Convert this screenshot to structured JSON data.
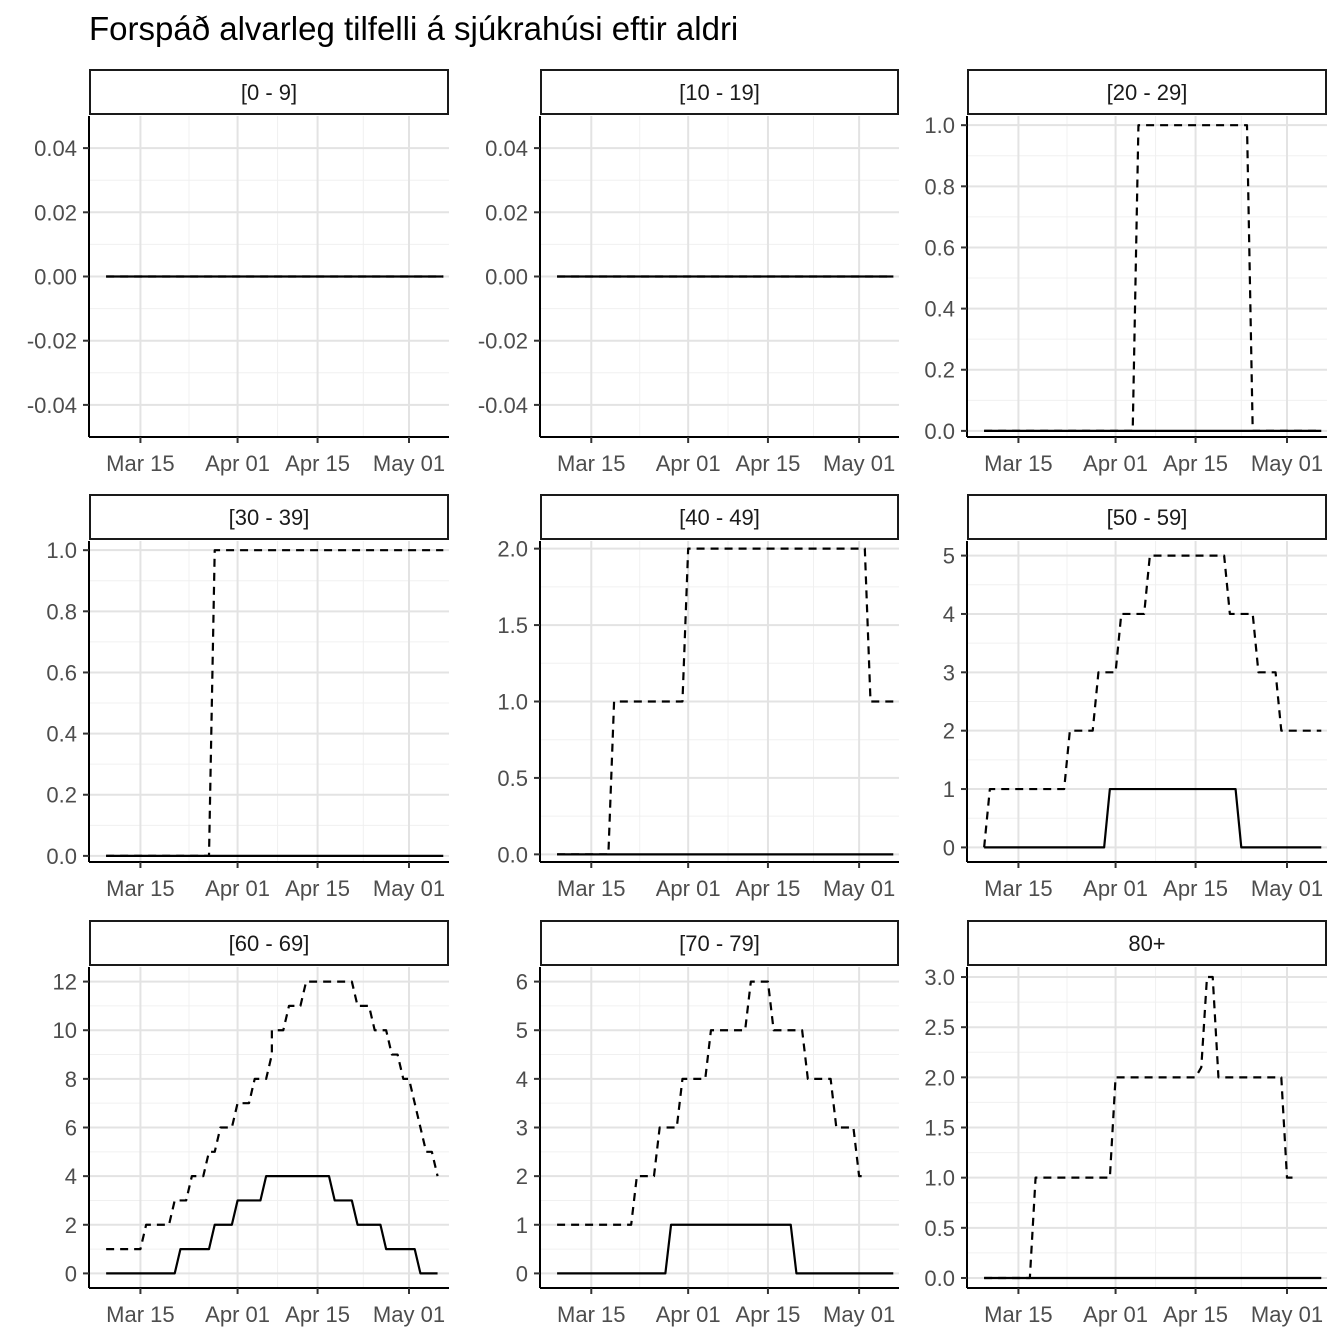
{
  "title": "Forspáð alvarleg tilfelli á sjúkrahúsi eftir aldri",
  "chart_data": {
    "type": "line",
    "title": "Forspáð alvarleg tilfelli á sjúkrahúsi eftir aldri",
    "xlabel": "",
    "ylabel": "",
    "grid": true,
    "x_range": [
      "2020-03-06",
      "2020-05-08"
    ],
    "x_ticks": [
      {
        "date": "2020-03-15",
        "label": "Mar 15"
      },
      {
        "date": "2020-04-01",
        "label": "Apr 01"
      },
      {
        "date": "2020-04-15",
        "label": "Apr 15"
      },
      {
        "date": "2020-05-01",
        "label": "May 01"
      }
    ],
    "line_styles": {
      "upper": "dashed",
      "median": "solid"
    },
    "panels": [
      {
        "label": "[0 - 9]",
        "ylim": [
          -0.05,
          0.05
        ],
        "y_ticks": [
          -0.04,
          -0.02,
          0.0,
          0.02,
          0.04
        ],
        "y_tick_labels": [
          "-0.04",
          "-0.02",
          "0.00",
          "0.02",
          "0.04"
        ],
        "series": [
          {
            "style": "dashed",
            "points": [
              [
                "2020-03-09",
                0
              ],
              [
                "2020-05-07",
                0
              ]
            ]
          },
          {
            "style": "solid",
            "points": [
              [
                "2020-03-09",
                0
              ],
              [
                "2020-05-07",
                0
              ]
            ]
          }
        ]
      },
      {
        "label": "[10 - 19]",
        "ylim": [
          -0.05,
          0.05
        ],
        "y_ticks": [
          -0.04,
          -0.02,
          0.0,
          0.02,
          0.04
        ],
        "y_tick_labels": [
          "-0.04",
          "-0.02",
          "0.00",
          "0.02",
          "0.04"
        ],
        "series": [
          {
            "style": "dashed",
            "points": [
              [
                "2020-03-09",
                0
              ],
              [
                "2020-05-07",
                0
              ]
            ]
          },
          {
            "style": "solid",
            "points": [
              [
                "2020-03-09",
                0
              ],
              [
                "2020-05-07",
                0
              ]
            ]
          }
        ]
      },
      {
        "label": "[20 - 29]",
        "ylim": [
          -0.02,
          1.03
        ],
        "y_ticks": [
          0,
          0.2,
          0.4,
          0.6,
          0.8,
          1.0
        ],
        "y_tick_labels": [
          "0.0",
          "0.2",
          "0.4",
          "0.6",
          "0.8",
          "1.0"
        ],
        "series": [
          {
            "style": "dashed",
            "points": [
              [
                "2020-03-09",
                0
              ],
              [
                "2020-04-04",
                0
              ],
              [
                "2020-04-05",
                1
              ],
              [
                "2020-04-24",
                1
              ],
              [
                "2020-04-25",
                0
              ],
              [
                "2020-05-07",
                0
              ]
            ]
          },
          {
            "style": "solid",
            "points": [
              [
                "2020-03-09",
                0
              ],
              [
                "2020-05-07",
                0
              ]
            ]
          }
        ]
      },
      {
        "label": "[30 - 39]",
        "ylim": [
          -0.02,
          1.03
        ],
        "y_ticks": [
          0,
          0.2,
          0.4,
          0.6,
          0.8,
          1.0
        ],
        "y_tick_labels": [
          "0.0",
          "0.2",
          "0.4",
          "0.6",
          "0.8",
          "1.0"
        ],
        "series": [
          {
            "style": "dashed",
            "points": [
              [
                "2020-03-09",
                0
              ],
              [
                "2020-03-27",
                0
              ],
              [
                "2020-03-28",
                1
              ],
              [
                "2020-05-07",
                1
              ]
            ]
          },
          {
            "style": "solid",
            "points": [
              [
                "2020-03-09",
                0
              ],
              [
                "2020-05-07",
                0
              ]
            ]
          }
        ]
      },
      {
        "label": "[40 - 49]",
        "ylim": [
          -0.05,
          2.05
        ],
        "y_ticks": [
          0,
          0.5,
          1.0,
          1.5,
          2.0
        ],
        "y_tick_labels": [
          "0.0",
          "0.5",
          "1.0",
          "1.5",
          "2.0"
        ],
        "series": [
          {
            "style": "dashed",
            "points": [
              [
                "2020-03-09",
                0
              ],
              [
                "2020-03-18",
                0
              ],
              [
                "2020-03-19",
                1
              ],
              [
                "2020-03-31",
                1
              ],
              [
                "2020-04-01",
                2
              ],
              [
                "2020-05-02",
                2
              ],
              [
                "2020-05-03",
                1
              ],
              [
                "2020-05-07",
                1
              ]
            ]
          },
          {
            "style": "solid",
            "points": [
              [
                "2020-03-09",
                0
              ],
              [
                "2020-05-07",
                0
              ]
            ]
          }
        ]
      },
      {
        "label": "[50 - 59]",
        "ylim": [
          -0.25,
          5.25
        ],
        "y_ticks": [
          0,
          1,
          2,
          3,
          4,
          5
        ],
        "y_tick_labels": [
          "0",
          "1",
          "2",
          "3",
          "4",
          "5"
        ],
        "series": [
          {
            "style": "dashed",
            "points": [
              [
                "2020-03-09",
                0
              ],
              [
                "2020-03-10",
                1
              ],
              [
                "2020-03-23",
                1
              ],
              [
                "2020-03-24",
                2
              ],
              [
                "2020-03-28",
                2
              ],
              [
                "2020-03-29",
                3
              ],
              [
                "2020-04-01",
                3
              ],
              [
                "2020-04-02",
                4
              ],
              [
                "2020-04-06",
                4
              ],
              [
                "2020-04-07",
                5
              ],
              [
                "2020-04-20",
                5
              ],
              [
                "2020-04-21",
                4
              ],
              [
                "2020-04-25",
                4
              ],
              [
                "2020-04-26",
                3
              ],
              [
                "2020-04-29",
                3
              ],
              [
                "2020-04-30",
                2
              ],
              [
                "2020-05-07",
                2
              ]
            ]
          },
          {
            "style": "solid",
            "points": [
              [
                "2020-03-09",
                0
              ],
              [
                "2020-03-30",
                0
              ],
              [
                "2020-03-31",
                1
              ],
              [
                "2020-04-22",
                1
              ],
              [
                "2020-04-23",
                0
              ],
              [
                "2020-05-07",
                0
              ]
            ]
          }
        ]
      },
      {
        "label": "[60 - 69]",
        "ylim": [
          -0.6,
          12.6
        ],
        "y_ticks": [
          0,
          2,
          4,
          6,
          8,
          10,
          12
        ],
        "y_tick_labels": [
          "0",
          "2",
          "4",
          "6",
          "8",
          "10",
          "12"
        ],
        "series": [
          {
            "style": "dashed",
            "points": [
              [
                "2020-03-09",
                1
              ],
              [
                "2020-03-15",
                1
              ],
              [
                "2020-03-16",
                2
              ],
              [
                "2020-03-20",
                2
              ],
              [
                "2020-03-21",
                3
              ],
              [
                "2020-03-23",
                3
              ],
              [
                "2020-03-24",
                4
              ],
              [
                "2020-03-26",
                4
              ],
              [
                "2020-03-27",
                5
              ],
              [
                "2020-03-28",
                5
              ],
              [
                "2020-03-29",
                6
              ],
              [
                "2020-03-31",
                6
              ],
              [
                "2020-04-01",
                7
              ],
              [
                "2020-04-03",
                7
              ],
              [
                "2020-04-04",
                8
              ],
              [
                "2020-04-06",
                8
              ],
              [
                "2020-04-07",
                9
              ],
              [
                "2020-04-07",
                10
              ],
              [
                "2020-04-09",
                10
              ],
              [
                "2020-04-10",
                11
              ],
              [
                "2020-04-12",
                11
              ],
              [
                "2020-04-13",
                12
              ],
              [
                "2020-04-21",
                12
              ],
              [
                "2020-04-22",
                11
              ],
              [
                "2020-04-24",
                11
              ],
              [
                "2020-04-25",
                10
              ],
              [
                "2020-04-27",
                10
              ],
              [
                "2020-04-28",
                9
              ],
              [
                "2020-04-29",
                9
              ],
              [
                "2020-04-30",
                8
              ],
              [
                "2020-05-01",
                8
              ],
              [
                "2020-05-02",
                7
              ],
              [
                "2020-05-03",
                6
              ],
              [
                "2020-05-04",
                5
              ],
              [
                "2020-05-05",
                5
              ],
              [
                "2020-05-06",
                4
              ]
            ]
          },
          {
            "style": "solid",
            "points": [
              [
                "2020-03-09",
                0
              ],
              [
                "2020-03-21",
                0
              ],
              [
                "2020-03-22",
                1
              ],
              [
                "2020-03-27",
                1
              ],
              [
                "2020-03-28",
                2
              ],
              [
                "2020-03-31",
                2
              ],
              [
                "2020-04-01",
                3
              ],
              [
                "2020-04-05",
                3
              ],
              [
                "2020-04-06",
                4
              ],
              [
                "2020-04-17",
                4
              ],
              [
                "2020-04-18",
                3
              ],
              [
                "2020-04-21",
                3
              ],
              [
                "2020-04-22",
                2
              ],
              [
                "2020-04-26",
                2
              ],
              [
                "2020-04-27",
                1
              ],
              [
                "2020-05-02",
                1
              ],
              [
                "2020-05-03",
                0
              ],
              [
                "2020-05-06",
                0
              ]
            ]
          }
        ]
      },
      {
        "label": "[70 - 79]",
        "ylim": [
          -0.3,
          6.3
        ],
        "y_ticks": [
          0,
          1,
          2,
          3,
          4,
          5,
          6
        ],
        "y_tick_labels": [
          "0",
          "1",
          "2",
          "3",
          "4",
          "5",
          "6"
        ],
        "series": [
          {
            "style": "dashed",
            "points": [
              [
                "2020-03-09",
                1
              ],
              [
                "2020-03-22",
                1
              ],
              [
                "2020-03-23",
                2
              ],
              [
                "2020-03-26",
                2
              ],
              [
                "2020-03-27",
                3
              ],
              [
                "2020-03-30",
                3
              ],
              [
                "2020-03-31",
                4
              ],
              [
                "2020-04-04",
                4
              ],
              [
                "2020-04-05",
                5
              ],
              [
                "2020-04-11",
                5
              ],
              [
                "2020-04-12",
                6
              ],
              [
                "2020-04-15",
                6
              ],
              [
                "2020-04-16",
                5
              ],
              [
                "2020-04-21",
                5
              ],
              [
                "2020-04-22",
                4
              ],
              [
                "2020-04-26",
                4
              ],
              [
                "2020-04-27",
                3
              ],
              [
                "2020-04-30",
                3
              ],
              [
                "2020-05-01",
                2
              ],
              [
                "2020-05-02",
                2
              ]
            ]
          },
          {
            "style": "solid",
            "points": [
              [
                "2020-03-09",
                0
              ],
              [
                "2020-03-28",
                0
              ],
              [
                "2020-03-29",
                1
              ],
              [
                "2020-04-19",
                1
              ],
              [
                "2020-04-20",
                0
              ],
              [
                "2020-05-07",
                0
              ]
            ]
          }
        ]
      },
      {
        "label": "80+",
        "ylim": [
          -0.1,
          3.1
        ],
        "y_ticks": [
          0,
          0.5,
          1.0,
          1.5,
          2.0,
          2.5,
          3.0
        ],
        "y_tick_labels": [
          "0.0",
          "0.5",
          "1.0",
          "1.5",
          "2.0",
          "2.5",
          "3.0"
        ],
        "series": [
          {
            "style": "dashed",
            "points": [
              [
                "2020-03-09",
                0
              ],
              [
                "2020-03-17",
                0
              ],
              [
                "2020-03-18",
                1
              ],
              [
                "2020-03-31",
                1
              ],
              [
                "2020-04-01",
                2
              ],
              [
                "2020-04-15",
                2
              ],
              [
                "2020-04-16",
                2.1
              ],
              [
                "2020-04-17",
                3
              ],
              [
                "2020-04-18",
                3
              ],
              [
                "2020-04-19",
                2
              ],
              [
                "2020-04-30",
                2
              ],
              [
                "2020-05-01",
                1
              ],
              [
                "2020-05-03",
                1
              ]
            ]
          },
          {
            "style": "solid",
            "points": [
              [
                "2020-03-09",
                0
              ],
              [
                "2020-05-07",
                0
              ]
            ]
          }
        ]
      }
    ]
  }
}
